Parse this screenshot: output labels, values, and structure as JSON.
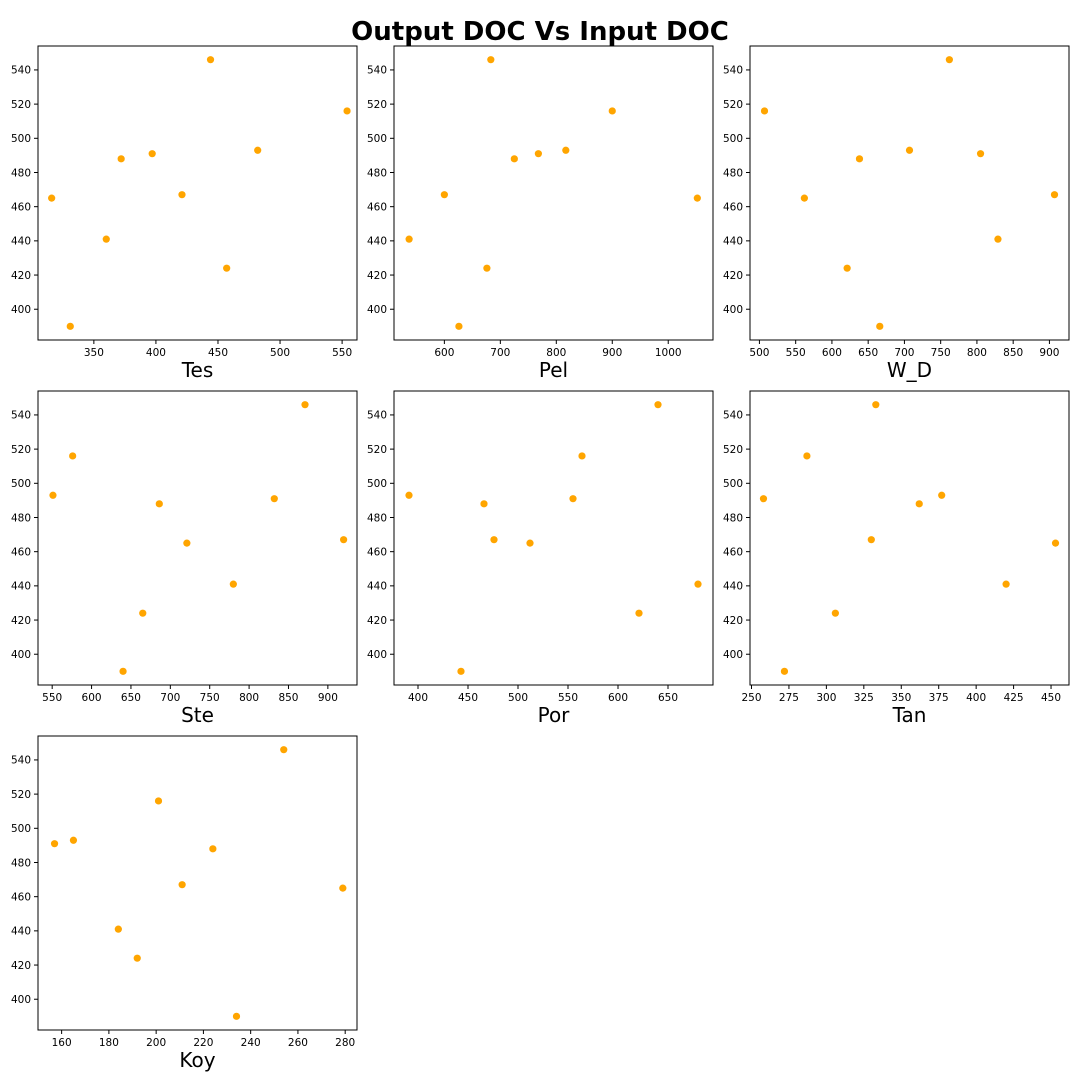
{
  "figure": {
    "title": "Output DOC Vs Input DOC",
    "marker_color": "#ffa500"
  },
  "chart_data": [
    {
      "type": "scatter",
      "xlabel": "Tes",
      "xlim": [
        305,
        562
      ],
      "ylim": [
        382,
        554
      ],
      "xticks": [
        350,
        400,
        450,
        500,
        550
      ],
      "yticks": [
        400,
        420,
        440,
        460,
        480,
        500,
        520,
        540
      ],
      "points": [
        [
          316,
          465
        ],
        [
          331,
          390
        ],
        [
          360,
          441
        ],
        [
          372,
          488
        ],
        [
          397,
          491
        ],
        [
          421,
          467
        ],
        [
          444,
          546
        ],
        [
          457,
          424
        ],
        [
          482,
          493
        ],
        [
          554,
          516
        ]
      ]
    },
    {
      "type": "scatter",
      "xlabel": "Pel",
      "xlim": [
        510,
        1080
      ],
      "ylim": [
        382,
        554
      ],
      "xticks": [
        600,
        700,
        800,
        900,
        1000
      ],
      "yticks": [
        400,
        420,
        440,
        460,
        480,
        500,
        520,
        540
      ],
      "points": [
        [
          537,
          441
        ],
        [
          600,
          467
        ],
        [
          626,
          390
        ],
        [
          676,
          424
        ],
        [
          683,
          546
        ],
        [
          725,
          488
        ],
        [
          768,
          491
        ],
        [
          817,
          493
        ],
        [
          900,
          516
        ],
        [
          1052,
          465
        ]
      ]
    },
    {
      "type": "scatter",
      "xlabel": "W_D",
      "xlim": [
        487,
        927
      ],
      "ylim": [
        382,
        554
      ],
      "xticks": [
        500,
        550,
        600,
        650,
        700,
        750,
        800,
        850,
        900
      ],
      "yticks": [
        400,
        420,
        440,
        460,
        480,
        500,
        520,
        540
      ],
      "points": [
        [
          507,
          516
        ],
        [
          562,
          465
        ],
        [
          621,
          424
        ],
        [
          638,
          488
        ],
        [
          666,
          390
        ],
        [
          707,
          493
        ],
        [
          762,
          546
        ],
        [
          805,
          491
        ],
        [
          829,
          441
        ],
        [
          907,
          467
        ]
      ]
    },
    {
      "type": "scatter",
      "xlabel": "Ste",
      "xlim": [
        532,
        937
      ],
      "ylim": [
        382,
        554
      ],
      "xticks": [
        550,
        600,
        650,
        700,
        750,
        800,
        850,
        900
      ],
      "yticks": [
        400,
        420,
        440,
        460,
        480,
        500,
        520,
        540
      ],
      "points": [
        [
          551,
          493
        ],
        [
          576,
          516
        ],
        [
          640,
          390
        ],
        [
          665,
          424
        ],
        [
          686,
          488
        ],
        [
          721,
          465
        ],
        [
          780,
          441
        ],
        [
          832,
          491
        ],
        [
          871,
          546
        ],
        [
          920,
          467
        ]
      ]
    },
    {
      "type": "scatter",
      "xlabel": "Por",
      "xlim": [
        376,
        695
      ],
      "ylim": [
        382,
        554
      ],
      "xticks": [
        400,
        450,
        500,
        550,
        600,
        650
      ],
      "yticks": [
        400,
        420,
        440,
        460,
        480,
        500,
        520,
        540
      ],
      "points": [
        [
          391,
          493
        ],
        [
          443,
          390
        ],
        [
          466,
          488
        ],
        [
          476,
          467
        ],
        [
          512,
          465
        ],
        [
          555,
          491
        ],
        [
          564,
          516
        ],
        [
          621,
          424
        ],
        [
          640,
          546
        ],
        [
          680,
          441
        ]
      ]
    },
    {
      "type": "scatter",
      "xlabel": "Tan",
      "xlim": [
        249,
        462
      ],
      "ylim": [
        382,
        554
      ],
      "xticks": [
        250,
        275,
        300,
        325,
        350,
        375,
        400,
        425,
        450
      ],
      "yticks": [
        400,
        420,
        440,
        460,
        480,
        500,
        520,
        540
      ],
      "points": [
        [
          258,
          491
        ],
        [
          272,
          390
        ],
        [
          287,
          516
        ],
        [
          306,
          424
        ],
        [
          330,
          467
        ],
        [
          333,
          546
        ],
        [
          362,
          488
        ],
        [
          377,
          493
        ],
        [
          420,
          441
        ],
        [
          453,
          465
        ]
      ]
    },
    {
      "type": "scatter",
      "xlabel": "Koy",
      "xlim": [
        150,
        285
      ],
      "ylim": [
        382,
        554
      ],
      "xticks": [
        160,
        180,
        200,
        220,
        240,
        260,
        280
      ],
      "yticks": [
        400,
        420,
        440,
        460,
        480,
        500,
        520,
        540
      ],
      "points": [
        [
          157,
          491
        ],
        [
          165,
          493
        ],
        [
          184,
          441
        ],
        [
          192,
          424
        ],
        [
          201,
          516
        ],
        [
          211,
          467
        ],
        [
          224,
          488
        ],
        [
          234,
          390
        ],
        [
          254,
          546
        ],
        [
          279,
          465
        ]
      ]
    }
  ]
}
